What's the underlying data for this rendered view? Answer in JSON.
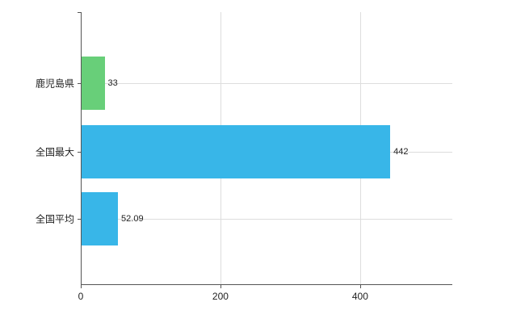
{
  "chart_data": {
    "type": "bar",
    "orientation": "horizontal",
    "title": "",
    "xlabel": "",
    "ylabel": "",
    "categories": [
      "鹿児島県",
      "全国最大",
      "全国平均"
    ],
    "values": [
      33,
      442,
      52.09
    ],
    "value_labels": [
      "33",
      "442",
      "52.09"
    ],
    "bar_colors": [
      "#68cf79",
      "#38b6e8",
      "#38b6e8"
    ],
    "x_ticks": [
      "0",
      "200",
      "400"
    ],
    "x_tick_values": [
      0,
      200,
      400
    ],
    "xlim": [
      0,
      532
    ],
    "grid": true,
    "legend": false,
    "axis_color": "#555555",
    "grid_color": "#dddddd",
    "background": "#ffffff"
  }
}
